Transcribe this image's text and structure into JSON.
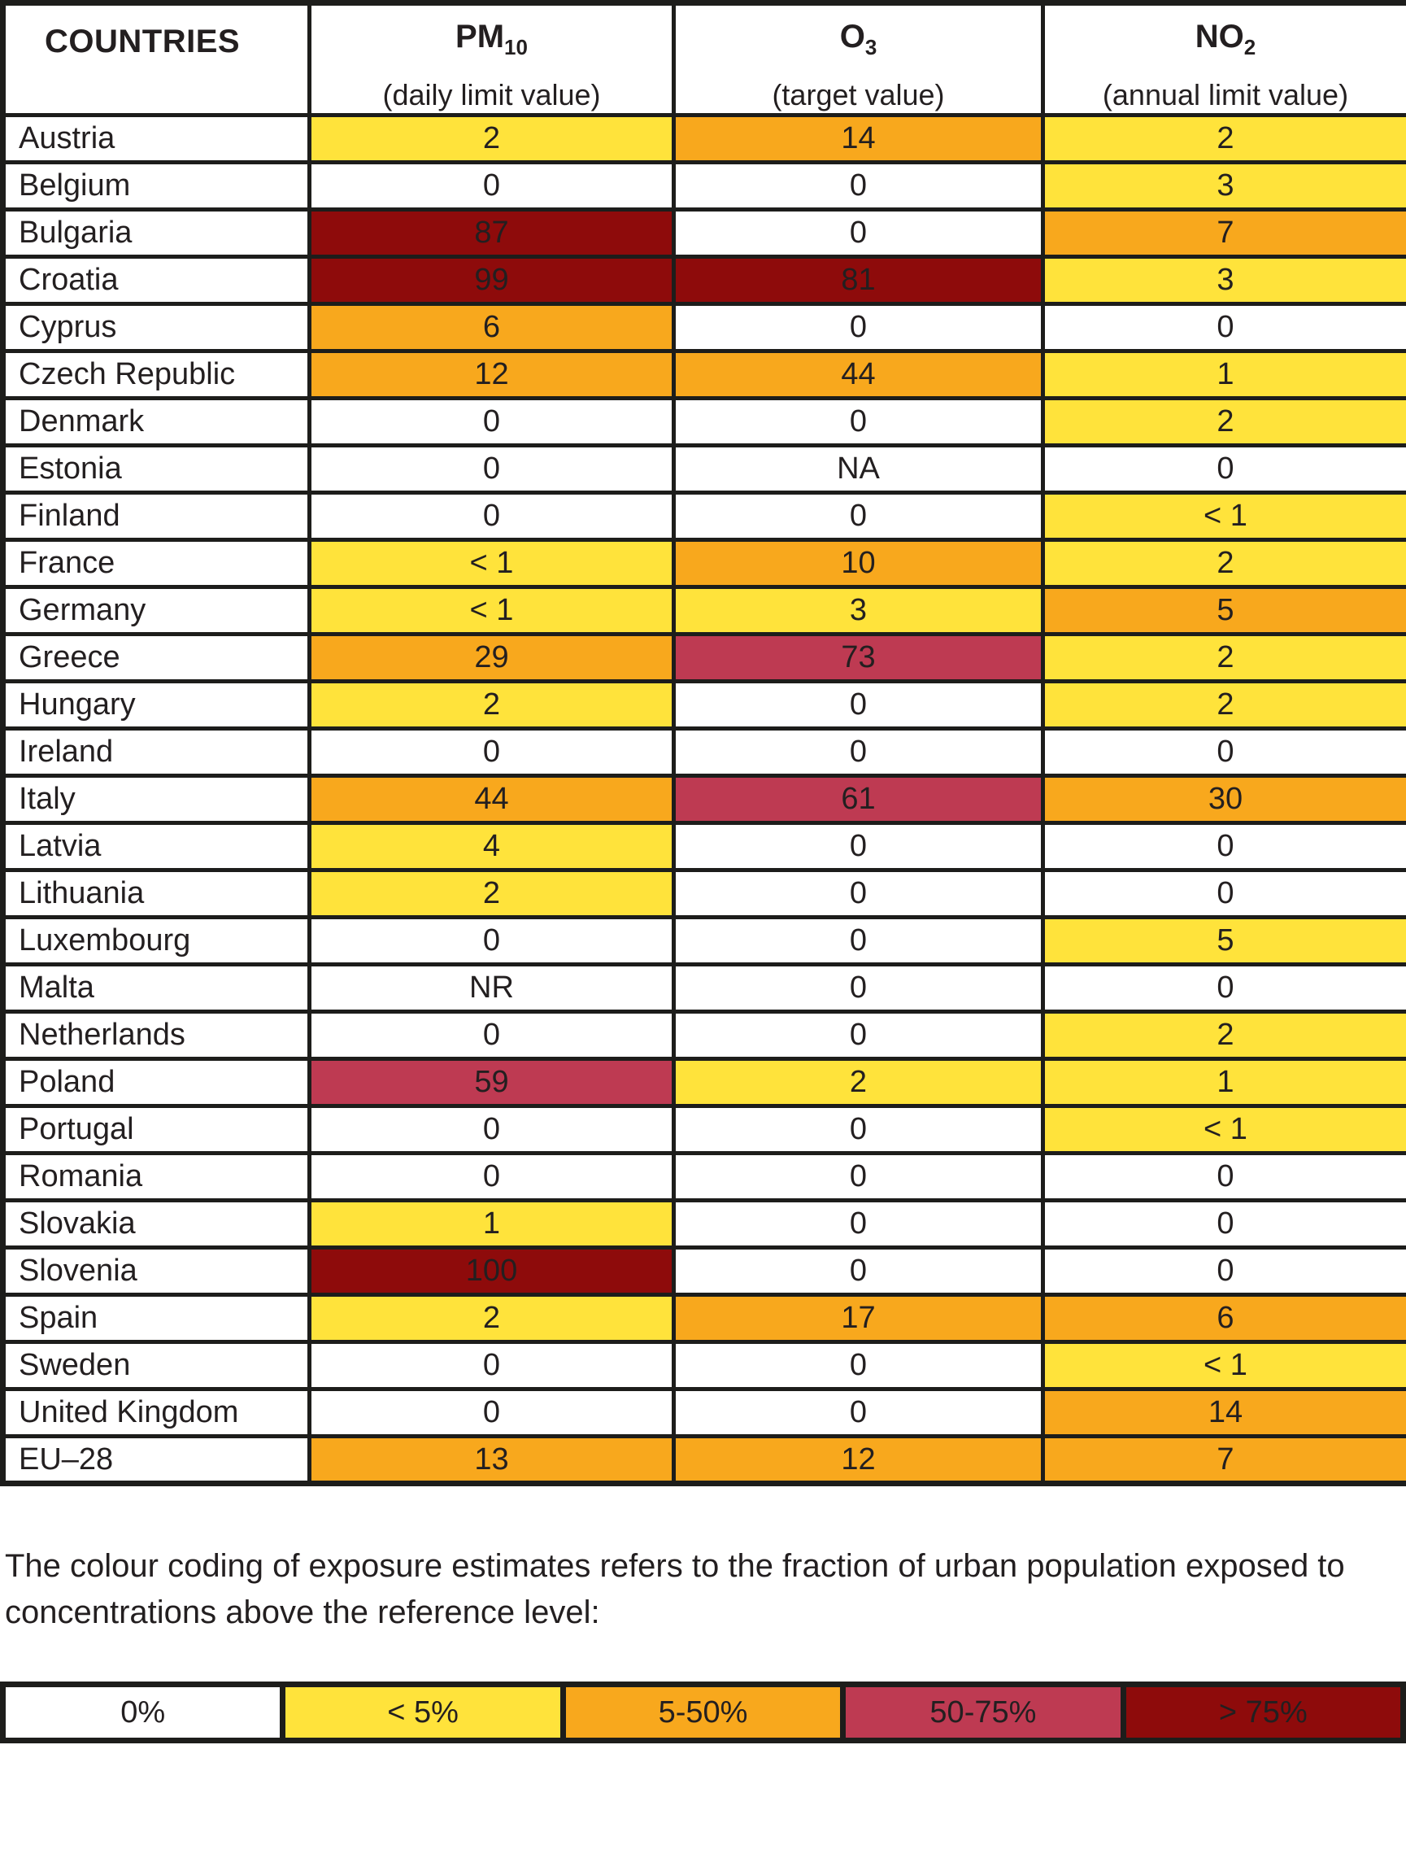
{
  "header": {
    "countries_label": "COUNTRIES",
    "columns": [
      {
        "key": "pm10",
        "name": "PM",
        "sub": "10",
        "desc": "(daily limit value)"
      },
      {
        "key": "o3",
        "name": "O",
        "sub": "3",
        "desc": "(target value)"
      },
      {
        "key": "no2",
        "name": "NO",
        "sub": "2",
        "desc": "(annual limit value)"
      }
    ]
  },
  "colors": {
    "white": "#ffffff",
    "yellow": "#ffe33b",
    "orange": "#f8a81d",
    "crimson": "#be3a52",
    "darkred": "#8e0b0b",
    "border": "#1d1d1b",
    "text": "#231f20"
  },
  "chart_data": {
    "type": "table",
    "title": "Fraction of urban population exposed to concentrations above reference level",
    "columns": [
      "PM10 (daily limit value)",
      "O3 (target value)",
      "NO2 (annual limit value)"
    ],
    "rows": [
      {
        "country": "Austria",
        "values": [
          "2",
          "14",
          "2"
        ],
        "colors": [
          "yellow",
          "orange",
          "yellow"
        ]
      },
      {
        "country": "Belgium",
        "values": [
          "0",
          "0",
          "3"
        ],
        "colors": [
          "white",
          "white",
          "yellow"
        ]
      },
      {
        "country": "Bulgaria",
        "values": [
          "87",
          "0",
          "7"
        ],
        "colors": [
          "darkred",
          "white",
          "orange"
        ]
      },
      {
        "country": "Croatia",
        "values": [
          "99",
          "81",
          "3"
        ],
        "colors": [
          "darkred",
          "darkred",
          "yellow"
        ]
      },
      {
        "country": "Cyprus",
        "values": [
          "6",
          "0",
          "0"
        ],
        "colors": [
          "orange",
          "white",
          "white"
        ]
      },
      {
        "country": "Czech Republic",
        "values": [
          "12",
          "44",
          "1"
        ],
        "colors": [
          "orange",
          "orange",
          "yellow"
        ]
      },
      {
        "country": "Denmark",
        "values": [
          "0",
          "0",
          "2"
        ],
        "colors": [
          "white",
          "white",
          "yellow"
        ]
      },
      {
        "country": "Estonia",
        "values": [
          "0",
          "NA",
          "0"
        ],
        "colors": [
          "white",
          "white",
          "white"
        ]
      },
      {
        "country": "Finland",
        "values": [
          "0",
          "0",
          "< 1"
        ],
        "colors": [
          "white",
          "white",
          "yellow"
        ]
      },
      {
        "country": "France",
        "values": [
          "< 1",
          "10",
          "2"
        ],
        "colors": [
          "yellow",
          "orange",
          "yellow"
        ]
      },
      {
        "country": "Germany",
        "values": [
          "< 1",
          "3",
          "5"
        ],
        "colors": [
          "yellow",
          "yellow",
          "orange"
        ]
      },
      {
        "country": "Greece",
        "values": [
          "29",
          "73",
          "2"
        ],
        "colors": [
          "orange",
          "crimson",
          "yellow"
        ]
      },
      {
        "country": "Hungary",
        "values": [
          "2",
          "0",
          "2"
        ],
        "colors": [
          "yellow",
          "white",
          "yellow"
        ]
      },
      {
        "country": "Ireland",
        "values": [
          "0",
          "0",
          "0"
        ],
        "colors": [
          "white",
          "white",
          "white"
        ]
      },
      {
        "country": "Italy",
        "values": [
          "44",
          "61",
          "30"
        ],
        "colors": [
          "orange",
          "crimson",
          "orange"
        ]
      },
      {
        "country": "Latvia",
        "values": [
          "4",
          "0",
          "0"
        ],
        "colors": [
          "yellow",
          "white",
          "white"
        ]
      },
      {
        "country": "Lithuania",
        "values": [
          "2",
          "0",
          "0"
        ],
        "colors": [
          "yellow",
          "white",
          "white"
        ]
      },
      {
        "country": "Luxembourg",
        "values": [
          "0",
          "0",
          "5"
        ],
        "colors": [
          "white",
          "white",
          "yellow"
        ]
      },
      {
        "country": "Malta",
        "values": [
          "NR",
          "0",
          "0"
        ],
        "colors": [
          "white",
          "white",
          "white"
        ]
      },
      {
        "country": "Netherlands",
        "values": [
          "0",
          "0",
          "2"
        ],
        "colors": [
          "white",
          "white",
          "yellow"
        ]
      },
      {
        "country": "Poland",
        "values": [
          "59",
          "2",
          "1"
        ],
        "colors": [
          "crimson",
          "yellow",
          "yellow"
        ]
      },
      {
        "country": "Portugal",
        "values": [
          "0",
          "0",
          "< 1"
        ],
        "colors": [
          "white",
          "white",
          "yellow"
        ]
      },
      {
        "country": "Romania",
        "values": [
          "0",
          "0",
          "0"
        ],
        "colors": [
          "white",
          "white",
          "white"
        ]
      },
      {
        "country": "Slovakia",
        "values": [
          "1",
          "0",
          "0"
        ],
        "colors": [
          "yellow",
          "white",
          "white"
        ]
      },
      {
        "country": "Slovenia",
        "values": [
          "100",
          "0",
          "0"
        ],
        "colors": [
          "darkred",
          "white",
          "white"
        ]
      },
      {
        "country": "Spain",
        "values": [
          "2",
          "17",
          "6"
        ],
        "colors": [
          "yellow",
          "orange",
          "orange"
        ]
      },
      {
        "country": "Sweden",
        "values": [
          "0",
          "0",
          "< 1"
        ],
        "colors": [
          "white",
          "white",
          "yellow"
        ]
      },
      {
        "country": "United Kingdom",
        "values": [
          "0",
          "0",
          "14"
        ],
        "colors": [
          "white",
          "white",
          "orange"
        ]
      },
      {
        "country": "EU–28",
        "values": [
          "13",
          "12",
          "7"
        ],
        "colors": [
          "orange",
          "orange",
          "orange"
        ]
      }
    ],
    "legend_position": "bottom"
  },
  "note": "The colour coding of exposure estimates refers to the fraction of urban population exposed to concentrations above the reference level:",
  "legend": [
    {
      "label": "0%",
      "color": "white"
    },
    {
      "label": "< 5%",
      "color": "yellow"
    },
    {
      "label": "5-50%",
      "color": "orange"
    },
    {
      "label": "50-75%",
      "color": "crimson"
    },
    {
      "label": "> 75%",
      "color": "darkred"
    }
  ]
}
